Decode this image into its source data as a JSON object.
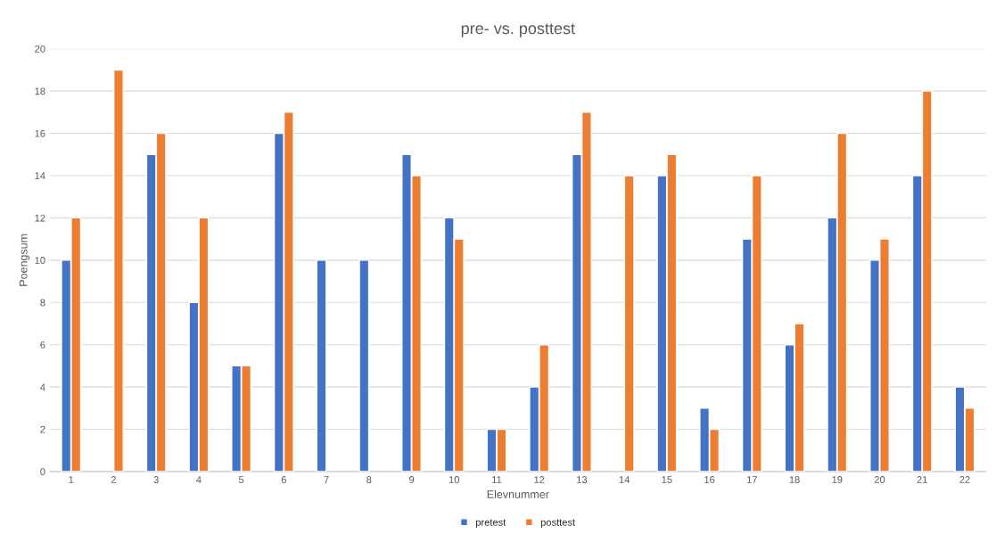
{
  "chart_data": {
    "type": "bar",
    "title": "pre- vs. posttest",
    "xlabel": "Elevnummer",
    "ylabel": "Poengsum",
    "categories": [
      "1",
      "2",
      "3",
      "4",
      "5",
      "6",
      "7",
      "8",
      "9",
      "10",
      "11",
      "12",
      "13",
      "14",
      "15",
      "16",
      "17",
      "18",
      "19",
      "20",
      "21",
      "22"
    ],
    "series": [
      {
        "name": "pretest",
        "color": "#4472c4",
        "values": [
          10,
          null,
          15,
          8,
          5,
          16,
          10,
          10,
          15,
          12,
          2,
          4,
          15,
          null,
          14,
          3,
          11,
          6,
          12,
          10,
          14,
          4
        ]
      },
      {
        "name": "posttest",
        "color": "#ed7d31",
        "values": [
          12,
          19,
          16,
          12,
          5,
          17,
          null,
          null,
          14,
          11,
          2,
          6,
          17,
          14,
          15,
          2,
          14,
          7,
          16,
          11,
          18,
          3
        ]
      }
    ],
    "ylim": [
      0,
      20
    ],
    "yticks": [
      0,
      2,
      4,
      6,
      8,
      10,
      12,
      14,
      16,
      18,
      20
    ],
    "grid": "y",
    "legend": "bottom"
  }
}
